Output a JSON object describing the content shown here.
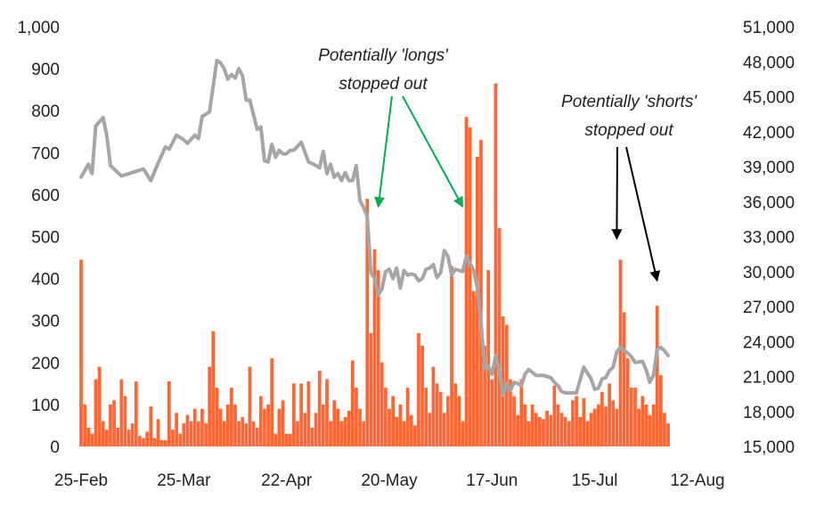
{
  "chart_data": {
    "type": "bar+line",
    "left_axis": {
      "min": 0,
      "max": 1000,
      "ticks": [
        "0",
        "100",
        "200",
        "300",
        "400",
        "500",
        "600",
        "700",
        "800",
        "900",
        "1,000"
      ]
    },
    "right_axis": {
      "min": 15000,
      "max": 51000,
      "ticks": [
        "15,000",
        "18,000",
        "21,000",
        "24,000",
        "27,000",
        "30,000",
        "33,000",
        "36,000",
        "39,000",
        "42,000",
        "45,000",
        "48,000",
        "51,000"
      ]
    },
    "x_axis": {
      "start_date": "2021-02-25",
      "end_date": "2021-08-12",
      "tick_dates": [
        "2021-02-25",
        "2021-03-25",
        "2021-04-22",
        "2021-05-20",
        "2021-06-17",
        "2021-07-15",
        "2021-08-12"
      ],
      "tick_labels": [
        "25-Feb",
        "25-Mar",
        "22-Apr",
        "20-May",
        "17-Jun",
        "15-Jul",
        "12-Aug"
      ]
    },
    "bar_series": {
      "color": "#FF6633",
      "points": [
        [
          "2021-02-25",
          445
        ],
        [
          "2021-02-26",
          100
        ],
        [
          "2021-02-27",
          45
        ],
        [
          "2021-02-28",
          30
        ],
        [
          "2021-03-01",
          160
        ],
        [
          "2021-03-02",
          190
        ],
        [
          "2021-03-03",
          60
        ],
        [
          "2021-03-04",
          40
        ],
        [
          "2021-03-05",
          100
        ],
        [
          "2021-03-06",
          110
        ],
        [
          "2021-03-07",
          45
        ],
        [
          "2021-03-08",
          160
        ],
        [
          "2021-03-09",
          120
        ],
        [
          "2021-03-10",
          40
        ],
        [
          "2021-03-11",
          55
        ],
        [
          "2021-03-12",
          155
        ],
        [
          "2021-03-13",
          25
        ],
        [
          "2021-03-14",
          20
        ],
        [
          "2021-03-15",
          35
        ],
        [
          "2021-03-16",
          95
        ],
        [
          "2021-03-17",
          20
        ],
        [
          "2021-03-18",
          65
        ],
        [
          "2021-03-19",
          15
        ],
        [
          "2021-03-20",
          15
        ],
        [
          "2021-03-21",
          155
        ],
        [
          "2021-03-22",
          40
        ],
        [
          "2021-03-23",
          80
        ],
        [
          "2021-03-24",
          30
        ],
        [
          "2021-03-25",
          55
        ],
        [
          "2021-03-26",
          75
        ],
        [
          "2021-03-27",
          60
        ],
        [
          "2021-03-28",
          90
        ],
        [
          "2021-03-29",
          60
        ],
        [
          "2021-03-30",
          90
        ],
        [
          "2021-03-31",
          55
        ],
        [
          "2021-04-01",
          190
        ],
        [
          "2021-04-02",
          275
        ],
        [
          "2021-04-03",
          140
        ],
        [
          "2021-04-04",
          90
        ],
        [
          "2021-04-05",
          60
        ],
        [
          "2021-04-06",
          100
        ],
        [
          "2021-04-07",
          140
        ],
        [
          "2021-04-08",
          100
        ],
        [
          "2021-04-09",
          60
        ],
        [
          "2021-04-10",
          70
        ],
        [
          "2021-04-11",
          55
        ],
        [
          "2021-04-12",
          190
        ],
        [
          "2021-04-13",
          60
        ],
        [
          "2021-04-14",
          45
        ],
        [
          "2021-04-15",
          120
        ],
        [
          "2021-04-16",
          90
        ],
        [
          "2021-04-17",
          100
        ],
        [
          "2021-04-18",
          210
        ],
        [
          "2021-04-19",
          30
        ],
        [
          "2021-04-20",
          90
        ],
        [
          "2021-04-21",
          110
        ],
        [
          "2021-04-22",
          30
        ],
        [
          "2021-04-23",
          30
        ],
        [
          "2021-04-24",
          150
        ],
        [
          "2021-04-25",
          60
        ],
        [
          "2021-04-26",
          150
        ],
        [
          "2021-04-27",
          80
        ],
        [
          "2021-04-28",
          155
        ],
        [
          "2021-04-29",
          45
        ],
        [
          "2021-04-30",
          80
        ],
        [
          "2021-05-01",
          180
        ],
        [
          "2021-05-02",
          100
        ],
        [
          "2021-05-03",
          160
        ],
        [
          "2021-05-04",
          60
        ],
        [
          "2021-05-05",
          110
        ],
        [
          "2021-05-06",
          90
        ],
        [
          "2021-05-07",
          60
        ],
        [
          "2021-05-08",
          70
        ],
        [
          "2021-05-09",
          85
        ],
        [
          "2021-05-10",
          205
        ],
        [
          "2021-05-11",
          140
        ],
        [
          "2021-05-12",
          90
        ],
        [
          "2021-05-13",
          60
        ],
        [
          "2021-05-14",
          590
        ],
        [
          "2021-05-15",
          270
        ],
        [
          "2021-05-16",
          470
        ],
        [
          "2021-05-17",
          420
        ],
        [
          "2021-05-18",
          200
        ],
        [
          "2021-05-19",
          140
        ],
        [
          "2021-05-20",
          90
        ],
        [
          "2021-05-21",
          120
        ],
        [
          "2021-05-22",
          70
        ],
        [
          "2021-05-23",
          100
        ],
        [
          "2021-05-24",
          60
        ],
        [
          "2021-05-25",
          140
        ],
        [
          "2021-05-26",
          75
        ],
        [
          "2021-05-27",
          50
        ],
        [
          "2021-05-28",
          270
        ],
        [
          "2021-05-29",
          240
        ],
        [
          "2021-05-30",
          140
        ],
        [
          "2021-05-31",
          80
        ],
        [
          "2021-06-01",
          190
        ],
        [
          "2021-06-02",
          150
        ],
        [
          "2021-06-03",
          130
        ],
        [
          "2021-06-04",
          80
        ],
        [
          "2021-06-05",
          120
        ],
        [
          "2021-06-06",
          430
        ],
        [
          "2021-06-07",
          150
        ],
        [
          "2021-06-08",
          120
        ],
        [
          "2021-06-09",
          60
        ],
        [
          "2021-06-10",
          785
        ],
        [
          "2021-06-11",
          760
        ],
        [
          "2021-06-12",
          370
        ],
        [
          "2021-06-13",
          690
        ],
        [
          "2021-06-14",
          730
        ],
        [
          "2021-06-15",
          240
        ],
        [
          "2021-06-16",
          420
        ],
        [
          "2021-06-17",
          160
        ],
        [
          "2021-06-18",
          865
        ],
        [
          "2021-06-19",
          520
        ],
        [
          "2021-06-20",
          310
        ],
        [
          "2021-06-21",
          290
        ],
        [
          "2021-06-22",
          160
        ],
        [
          "2021-06-23",
          120
        ],
        [
          "2021-06-24",
          75
        ],
        [
          "2021-06-25",
          160
        ],
        [
          "2021-06-26",
          100
        ],
        [
          "2021-06-27",
          60
        ],
        [
          "2021-06-28",
          100
        ],
        [
          "2021-06-29",
          80
        ],
        [
          "2021-06-30",
          70
        ],
        [
          "2021-07-01",
          65
        ],
        [
          "2021-07-02",
          85
        ],
        [
          "2021-07-03",
          75
        ],
        [
          "2021-07-04",
          145
        ],
        [
          "2021-07-05",
          100
        ],
        [
          "2021-07-06",
          80
        ],
        [
          "2021-07-07",
          70
        ],
        [
          "2021-07-08",
          60
        ],
        [
          "2021-07-09",
          110
        ],
        [
          "2021-07-10",
          120
        ],
        [
          "2021-07-11",
          70
        ],
        [
          "2021-07-12",
          115
        ],
        [
          "2021-07-13",
          60
        ],
        [
          "2021-07-14",
          80
        ],
        [
          "2021-07-15",
          90
        ],
        [
          "2021-07-16",
          100
        ],
        [
          "2021-07-17",
          130
        ],
        [
          "2021-07-18",
          95
        ],
        [
          "2021-07-19",
          150
        ],
        [
          "2021-07-20",
          110
        ],
        [
          "2021-07-21",
          90
        ],
        [
          "2021-07-22",
          445
        ],
        [
          "2021-07-23",
          320
        ],
        [
          "2021-07-24",
          210
        ],
        [
          "2021-07-25",
          140
        ],
        [
          "2021-07-26",
          140
        ],
        [
          "2021-07-27",
          90
        ],
        [
          "2021-07-28",
          120
        ],
        [
          "2021-07-29",
          100
        ],
        [
          "2021-07-30",
          75
        ],
        [
          "2021-07-31",
          100
        ],
        [
          "2021-08-01",
          335
        ],
        [
          "2021-08-02",
          170
        ],
        [
          "2021-08-03",
          80
        ],
        [
          "2021-08-04",
          55
        ]
      ]
    },
    "line_series": {
      "color": "#A6A6A6",
      "points": [
        [
          "2021-02-25",
          38100
        ],
        [
          "2021-02-27",
          39200
        ],
        [
          "2021-02-28",
          38400
        ],
        [
          "2021-03-01",
          42500
        ],
        [
          "2021-03-03",
          43200
        ],
        [
          "2021-03-04",
          41700
        ],
        [
          "2021-03-05",
          39100
        ],
        [
          "2021-03-07",
          38500
        ],
        [
          "2021-03-08",
          38200
        ],
        [
          "2021-03-11",
          38500
        ],
        [
          "2021-03-14",
          38800
        ],
        [
          "2021-03-16",
          37800
        ],
        [
          "2021-03-18",
          39300
        ],
        [
          "2021-03-20",
          40700
        ],
        [
          "2021-03-21",
          40500
        ],
        [
          "2021-03-23",
          41700
        ],
        [
          "2021-03-25",
          41300
        ],
        [
          "2021-03-26",
          41000
        ],
        [
          "2021-03-28",
          41700
        ],
        [
          "2021-03-29",
          41400
        ],
        [
          "2021-03-30",
          43300
        ],
        [
          "2021-04-01",
          43700
        ],
        [
          "2021-04-03",
          48100
        ],
        [
          "2021-04-04",
          47900
        ],
        [
          "2021-04-05",
          47400
        ],
        [
          "2021-04-06",
          46500
        ],
        [
          "2021-04-07",
          46900
        ],
        [
          "2021-04-08",
          46600
        ],
        [
          "2021-04-09",
          47400
        ],
        [
          "2021-04-10",
          46800
        ],
        [
          "2021-04-11",
          44700
        ],
        [
          "2021-04-12",
          44700
        ],
        [
          "2021-04-14",
          42200
        ],
        [
          "2021-04-15",
          42400
        ],
        [
          "2021-04-16",
          39500
        ],
        [
          "2021-04-17",
          39400
        ],
        [
          "2021-04-18",
          40900
        ],
        [
          "2021-04-19",
          39800
        ],
        [
          "2021-04-20",
          40400
        ],
        [
          "2021-04-21",
          40100
        ],
        [
          "2021-04-22",
          40100
        ],
        [
          "2021-04-23",
          40400
        ],
        [
          "2021-04-24",
          40400
        ],
        [
          "2021-04-26",
          41100
        ],
        [
          "2021-04-28",
          39400
        ],
        [
          "2021-04-30",
          39100
        ],
        [
          "2021-05-01",
          38900
        ],
        [
          "2021-05-02",
          40300
        ],
        [
          "2021-05-03",
          38400
        ],
        [
          "2021-05-04",
          39200
        ],
        [
          "2021-05-05",
          38100
        ],
        [
          "2021-05-06",
          38400
        ],
        [
          "2021-05-07",
          37800
        ],
        [
          "2021-05-08",
          38500
        ],
        [
          "2021-05-09",
          37800
        ],
        [
          "2021-05-10",
          37800
        ],
        [
          "2021-05-11",
          39100
        ],
        [
          "2021-05-12",
          36100
        ],
        [
          "2021-05-13",
          35500
        ],
        [
          "2021-05-14",
          34700
        ],
        [
          "2021-05-15",
          29900
        ],
        [
          "2021-05-16",
          29400
        ],
        [
          "2021-05-17",
          28000
        ],
        [
          "2021-05-18",
          28500
        ],
        [
          "2021-05-19",
          30000
        ],
        [
          "2021-05-20",
          30200
        ],
        [
          "2021-05-21",
          29400
        ],
        [
          "2021-05-22",
          30300
        ],
        [
          "2021-05-23",
          28600
        ],
        [
          "2021-05-24",
          30100
        ],
        [
          "2021-05-25",
          29700
        ],
        [
          "2021-05-26",
          29800
        ],
        [
          "2021-05-27",
          29700
        ],
        [
          "2021-05-28",
          29200
        ],
        [
          "2021-05-29",
          29400
        ],
        [
          "2021-05-30",
          30200
        ],
        [
          "2021-05-31",
          30300
        ],
        [
          "2021-06-01",
          30600
        ],
        [
          "2021-06-02",
          29500
        ],
        [
          "2021-06-03",
          29900
        ],
        [
          "2021-06-04",
          31800
        ],
        [
          "2021-06-05",
          31300
        ],
        [
          "2021-06-06",
          29700
        ],
        [
          "2021-06-07",
          30200
        ],
        [
          "2021-06-09",
          30000
        ],
        [
          "2021-06-10",
          31300
        ],
        [
          "2021-06-11",
          30700
        ],
        [
          "2021-06-12",
          30100
        ],
        [
          "2021-06-13",
          28600
        ],
        [
          "2021-06-14",
          25600
        ],
        [
          "2021-06-15",
          21700
        ],
        [
          "2021-06-16",
          21900
        ],
        [
          "2021-06-17",
          21200
        ],
        [
          "2021-06-18",
          22800
        ],
        [
          "2021-06-19",
          21500
        ],
        [
          "2021-06-20",
          19400
        ],
        [
          "2021-06-21",
          20400
        ],
        [
          "2021-06-22",
          19800
        ],
        [
          "2021-06-23",
          20500
        ],
        [
          "2021-06-24",
          20400
        ],
        [
          "2021-06-25",
          20200
        ],
        [
          "2021-06-26",
          21200
        ],
        [
          "2021-06-27",
          21600
        ],
        [
          "2021-06-29",
          21100
        ],
        [
          "2021-07-01",
          21100
        ],
        [
          "2021-07-03",
          20900
        ],
        [
          "2021-07-04",
          20500
        ],
        [
          "2021-07-05",
          20200
        ],
        [
          "2021-07-06",
          19700
        ],
        [
          "2021-07-07",
          19600
        ],
        [
          "2021-07-10",
          19600
        ],
        [
          "2021-07-11",
          20700
        ],
        [
          "2021-07-12",
          21800
        ],
        [
          "2021-07-13",
          21300
        ],
        [
          "2021-07-14",
          20800
        ],
        [
          "2021-07-15",
          19900
        ],
        [
          "2021-07-16",
          20000
        ],
        [
          "2021-07-17",
          20800
        ],
        [
          "2021-07-18",
          20900
        ],
        [
          "2021-07-19",
          21500
        ],
        [
          "2021-07-20",
          21800
        ],
        [
          "2021-07-21",
          23100
        ],
        [
          "2021-07-22",
          23500
        ],
        [
          "2021-07-24",
          23000
        ],
        [
          "2021-07-25",
          22700
        ],
        [
          "2021-07-26",
          22200
        ],
        [
          "2021-07-28",
          22300
        ],
        [
          "2021-07-29",
          21600
        ],
        [
          "2021-07-30",
          20500
        ],
        [
          "2021-07-31",
          21100
        ],
        [
          "2021-08-01",
          23300
        ],
        [
          "2021-08-02",
          23500
        ],
        [
          "2021-08-03",
          23200
        ],
        [
          "2021-08-04",
          22800
        ]
      ]
    },
    "annotations": [
      {
        "line1": "Potentially 'longs'",
        "line2": "stopped out",
        "arrow_color": "#00B050",
        "targets": [
          "2021-05-17",
          "2021-06-09"
        ]
      },
      {
        "line1": "Potentially 'shorts'",
        "line2": "stopped out",
        "arrow_color": "#000000",
        "targets": [
          "2021-07-21",
          "2021-08-01"
        ]
      }
    ],
    "grid": false,
    "legend": "none"
  }
}
